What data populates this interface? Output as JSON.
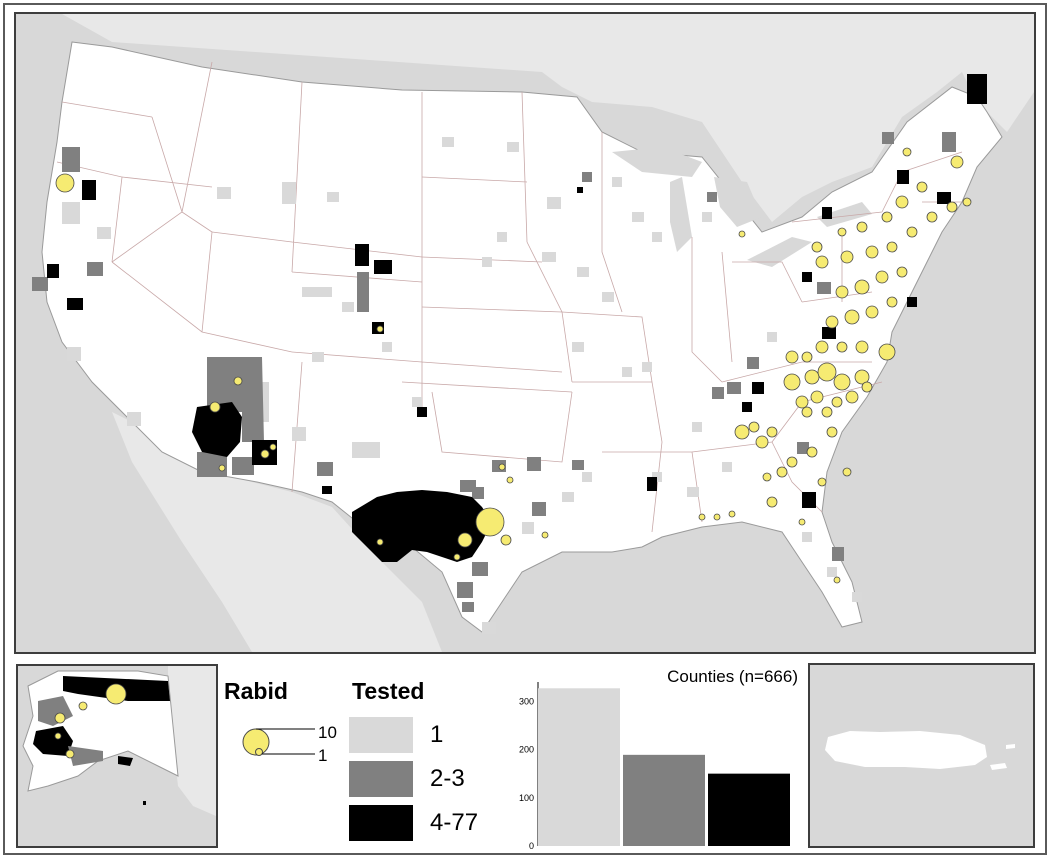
{
  "colors": {
    "water": "#d8d8d8",
    "land": "#ffffff",
    "outside": "#e8e8e8",
    "tested_1": "#d9d9d9",
    "tested_2_3": "#808080",
    "tested_4_77": "#000000",
    "rabid": "#f6eb72"
  },
  "legend": {
    "rabid_title": "Rabid",
    "tested_title": "Tested",
    "size_large": "10",
    "size_small": "1",
    "tested_classes": [
      {
        "label": "1",
        "color": "#d9d9d9"
      },
      {
        "label": "2-3",
        "color": "#808080"
      },
      {
        "label": "4-77",
        "color": "#000000"
      }
    ]
  },
  "chart_data": {
    "type": "bar",
    "title": "Counties (n=666)",
    "categories": [
      "1",
      "2-3",
      "4-77"
    ],
    "values": [
      327,
      189,
      150
    ],
    "colors": [
      "#d9d9d9",
      "#808080",
      "#000000"
    ],
    "yticks": [
      0,
      100,
      200,
      300
    ],
    "ylim": [
      0,
      340
    ],
    "xlabel": "",
    "ylabel": ""
  }
}
